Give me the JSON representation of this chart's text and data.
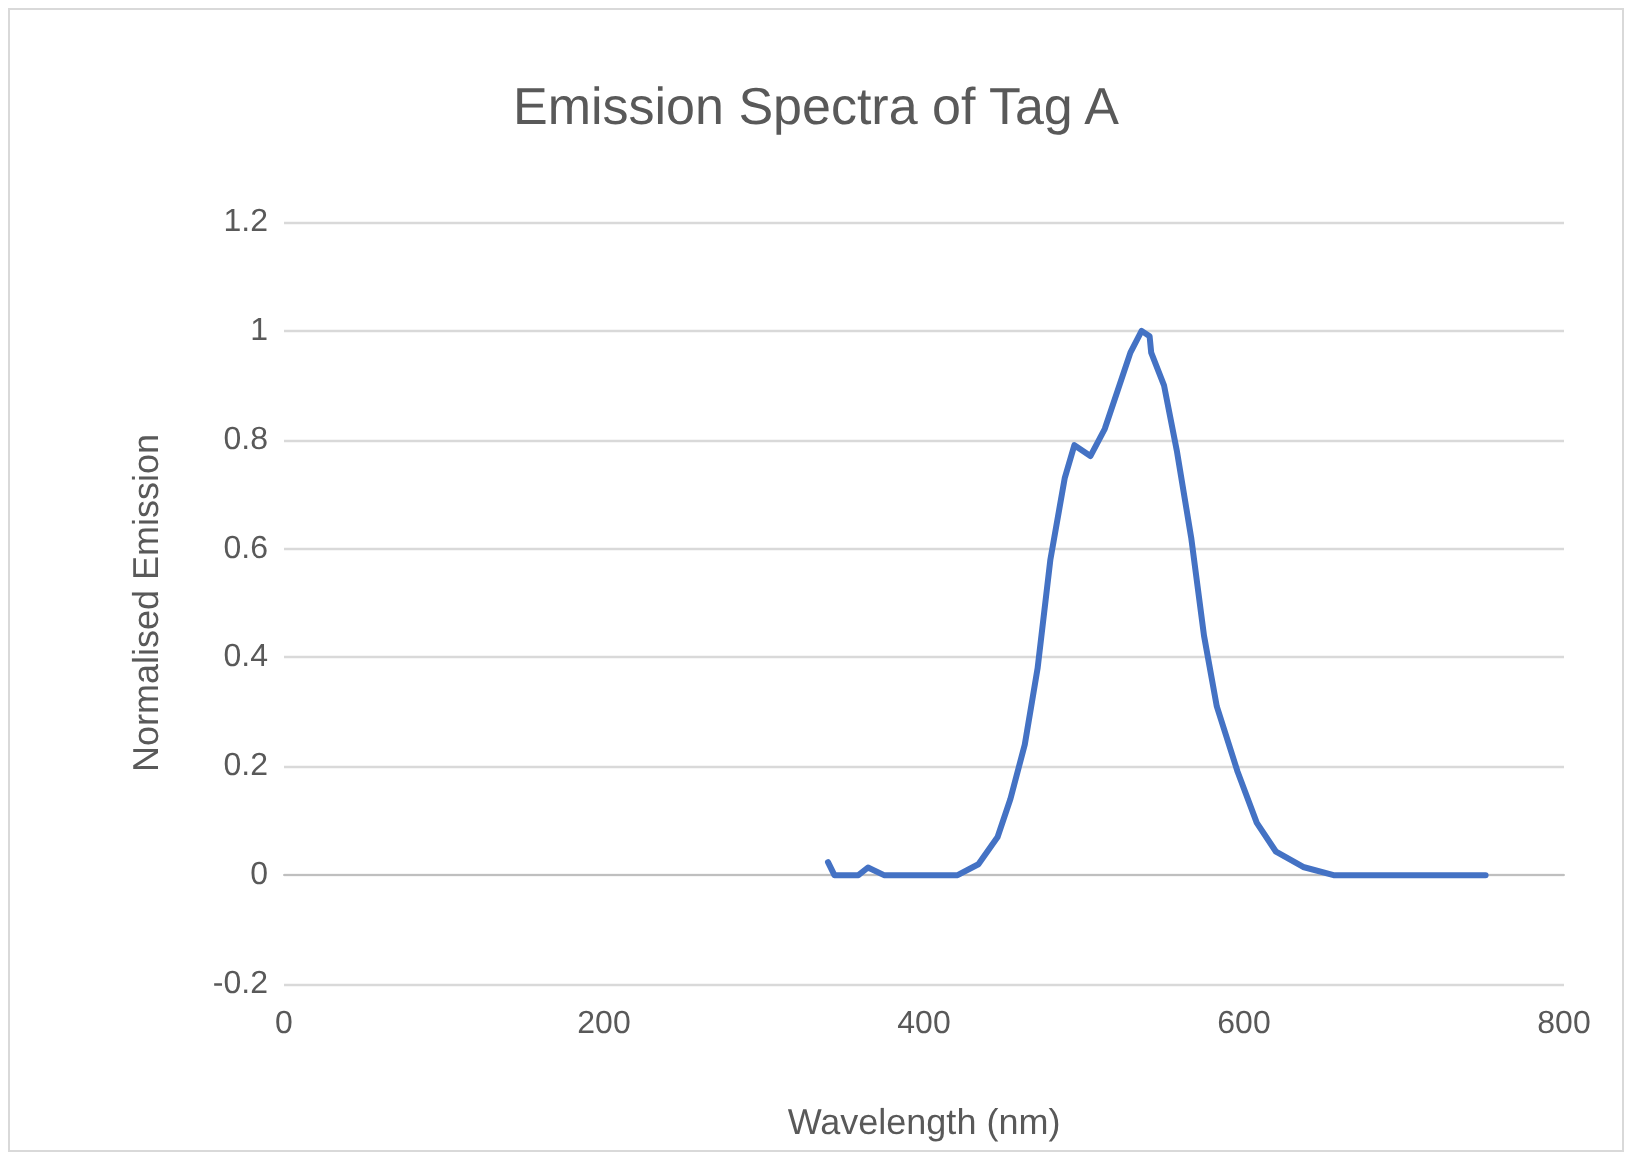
{
  "chart_data": {
    "type": "line",
    "title": "Emission Spectra of Tag A",
    "xlabel": "Wavelength (nm)",
    "ylabel": "Normalised Emission",
    "xlim": [
      0,
      800
    ],
    "xticks": [
      0,
      200,
      400,
      600,
      800
    ],
    "ylim": [
      -0.2,
      1.2
    ],
    "yticks": [
      -0.2,
      0,
      0.2,
      0.4,
      0.6,
      0.8,
      1,
      1.2
    ],
    "grid": "y",
    "marker": "none",
    "line_style": "solid",
    "series": [
      {
        "color": "#4472c4",
        "x": [
          340,
          344,
          359,
          365,
          375,
          421,
          434,
          446,
          454,
          463,
          471,
          479,
          488,
          494,
          504,
          513,
          521,
          529,
          536,
          541,
          542,
          550,
          558,
          567,
          575,
          583,
          596,
          608,
          620,
          637,
          656,
          751
        ],
        "values": [
          0.024,
          0,
          0,
          0.014,
          0,
          0,
          0.02,
          0.07,
          0.14,
          0.24,
          0.38,
          0.58,
          0.73,
          0.79,
          0.77,
          0.82,
          0.89,
          0.96,
          1.0,
          0.99,
          0.96,
          0.9,
          0.78,
          0.62,
          0.44,
          0.31,
          0.19,
          0.096,
          0.043,
          0.015,
          0,
          0
        ]
      }
    ]
  }
}
